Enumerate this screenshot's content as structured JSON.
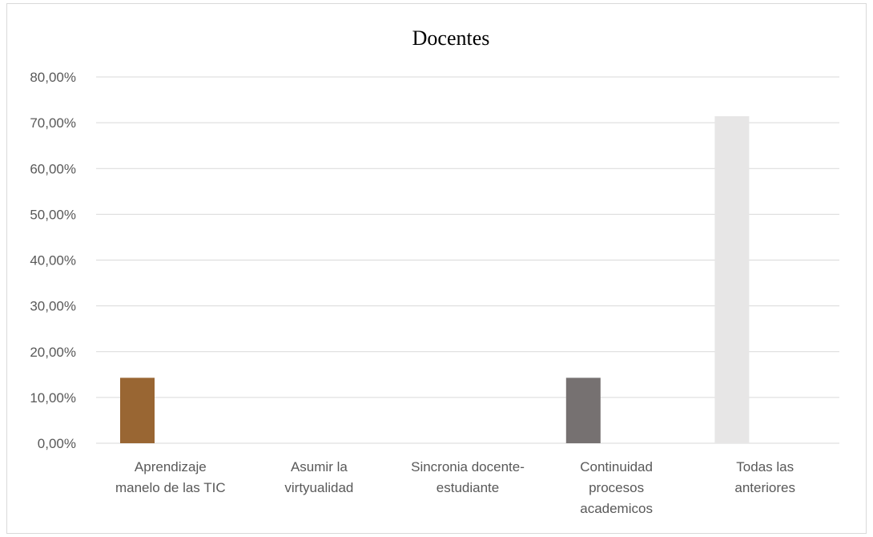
{
  "chart_data": {
    "type": "bar",
    "title": "Docentes",
    "categories": [
      [
        "Aprendizaje",
        "manelo de las TIC"
      ],
      [
        "Asumir la",
        "virtyualidad"
      ],
      [
        "Sincronia docente-",
        "estudiante"
      ],
      [
        "Continuidad",
        "procesos",
        "academicos"
      ],
      [
        "Todas las",
        "anteriores"
      ]
    ],
    "values": [
      14.29,
      0,
      0,
      14.29,
      71.43
    ],
    "colors": [
      "#996633",
      "#c0c0c0",
      "#a6a6a6",
      "#767171",
      "#e7e6e6"
    ],
    "ylim": [
      0,
      80
    ],
    "yticks": [
      0,
      10,
      20,
      30,
      40,
      50,
      60,
      70,
      80
    ],
    "ytick_labels": [
      "0,00%",
      "10,00%",
      "20,00%",
      "30,00%",
      "40,00%",
      "50,00%",
      "60,00%",
      "70,00%",
      "80,00%"
    ],
    "gridlines": true,
    "gridline_color": "#d9d9d9",
    "legend": "none"
  }
}
